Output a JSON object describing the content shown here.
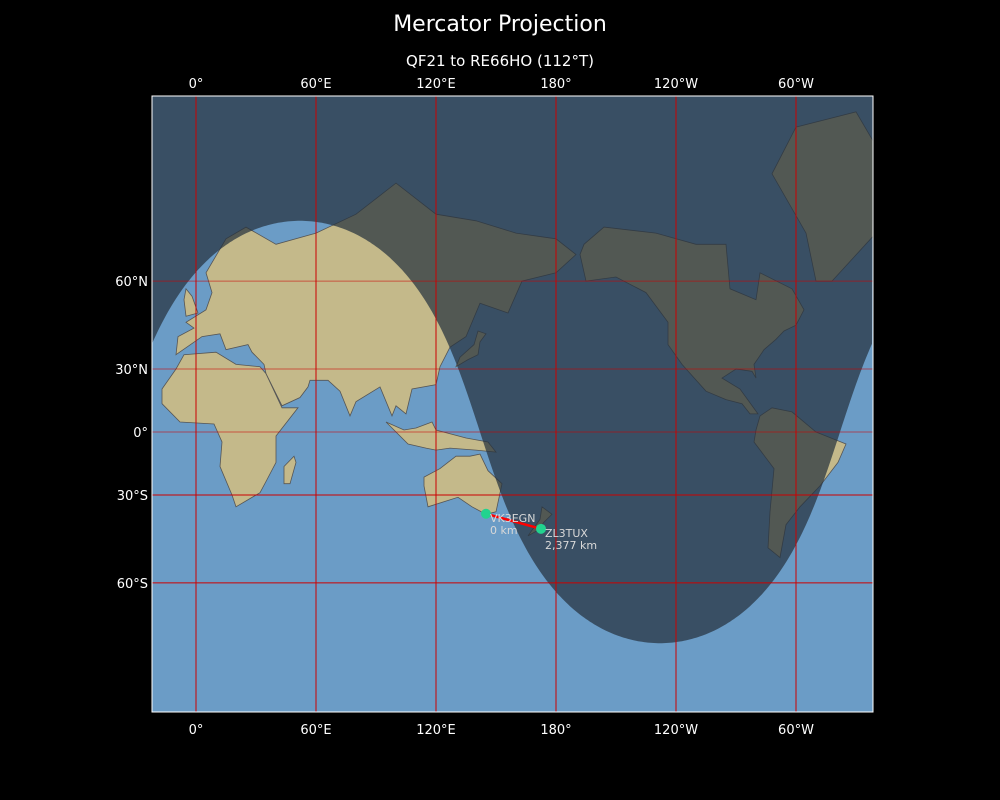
{
  "title": "Mercator Projection",
  "subtitle": "QF21 to RE66HO (112°T)",
  "map": {
    "projection": "Mercator",
    "night_shading": true,
    "gridline_color": "#cc0000",
    "path_color": "#ff0000",
    "marker_color": "#22d38f",
    "x_ticks": [
      {
        "lon": 0,
        "label": "0°"
      },
      {
        "lon": 60,
        "label": "60°E"
      },
      {
        "lon": 120,
        "label": "120°E"
      },
      {
        "lon": 180,
        "label": "180°"
      },
      {
        "lon": 240,
        "label": "120°W"
      },
      {
        "lon": 300,
        "label": "60°W"
      }
    ],
    "y_ticks": [
      {
        "lat": 60,
        "label": "60°N"
      },
      {
        "lat": 30,
        "label": "30°N"
      },
      {
        "lat": 0,
        "label": "0°"
      },
      {
        "lat": -30,
        "label": "30°S"
      },
      {
        "lat": -60,
        "label": "60°S"
      }
    ],
    "stations": [
      {
        "call": "VK3EGN",
        "distance": "0 km",
        "lon": 145,
        "lat": -37.8
      },
      {
        "call": "ZL3TUX",
        "distance": "2,377 km",
        "lon": 172.5,
        "lat": -43.5
      }
    ]
  }
}
